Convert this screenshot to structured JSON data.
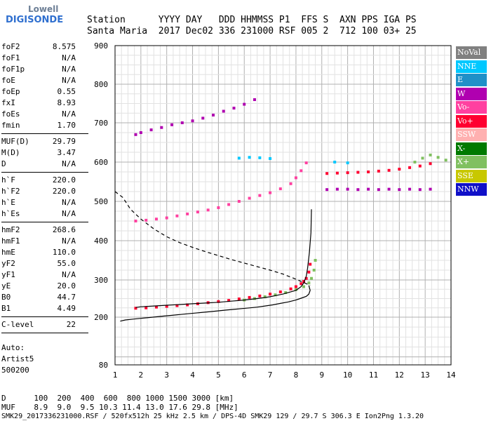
{
  "logo": {
    "line1": "Lowell",
    "line2": "DIGISONDE"
  },
  "header": {
    "row1": "Station      YYYY DAY   DDD HHMMSS P1  FFS S  AXN PPS IGA PS",
    "row2": "Santa Maria  2017 Dec02 336 231000 RSF 005 2  712 100 03+ 25"
  },
  "params": {
    "group1": [
      [
        "foF2",
        "8.575"
      ],
      [
        "foF1",
        "N/A"
      ],
      [
        "foF1p",
        "N/A"
      ],
      [
        "foE",
        "N/A"
      ],
      [
        "foEp",
        "0.55"
      ],
      [
        "fxI",
        "8.93"
      ],
      [
        "foEs",
        "N/A"
      ],
      [
        "fmin",
        "1.70"
      ]
    ],
    "group2": [
      [
        "MUF(D)",
        "29.79"
      ],
      [
        "M(D)",
        "3.47"
      ],
      [
        "D",
        "N/A"
      ]
    ],
    "group3": [
      [
        "h`F",
        "220.0"
      ],
      [
        "h`F2",
        "220.0"
      ],
      [
        "h`E",
        "N/A"
      ],
      [
        "h`Es",
        "N/A"
      ]
    ],
    "group4": [
      [
        "hmF2",
        "268.6"
      ],
      [
        "hmF1",
        "N/A"
      ],
      [
        "hmE",
        "110.0"
      ],
      [
        "yF2",
        "55.0"
      ],
      [
        "yF1",
        "N/A"
      ],
      [
        "yE",
        "20.0"
      ],
      [
        "B0",
        "44.7"
      ],
      [
        "B1",
        "4.49"
      ]
    ],
    "group5": [
      [
        "C-level",
        "22"
      ]
    ],
    "auto": [
      "Auto:",
      "Artist5",
      "500200"
    ]
  },
  "legend": [
    {
      "label": "NoVal",
      "color": "#808080"
    },
    {
      "label": "NNE",
      "color": "#00c8ff"
    },
    {
      "label": "E",
      "color": "#1f90c8"
    },
    {
      "label": "W",
      "color": "#b000b0"
    },
    {
      "label": "Vo-",
      "color": "#ff40a0"
    },
    {
      "label": "Vo+",
      "color": "#ff0030"
    },
    {
      "label": "SSW",
      "color": "#ffb0b0"
    },
    {
      "label": "X-",
      "color": "#007a00"
    },
    {
      "label": "X+",
      "color": "#80c060"
    },
    {
      "label": "SSE",
      "color": "#c8c800"
    },
    {
      "label": "NNW",
      "color": "#1010c8"
    }
  ],
  "footer": {
    "row1": "D      100  200  400  600  800 1000 1500 3000 [km]",
    "row2": "MUF    8.9  9.0  9.5 10.3 11.4 13.0 17.6 29.8 [MHz]",
    "row3": "SMK29_2017336231000.RSF / 520fx512h 25 kHz 2.5 km / DPS-4D SMK29 129 / 29.7 S 306.3 E Ion2Png 1.3.20"
  },
  "chart_data": {
    "type": "scatter",
    "xlim": [
      1,
      14
    ],
    "ylim": [
      80,
      900
    ],
    "xticks": [
      "1",
      "2",
      "3",
      "4",
      "5",
      "6",
      "7",
      "8",
      "9",
      "10",
      "11",
      "12",
      "13",
      "14"
    ],
    "yticks": [
      "80",
      "200",
      "300",
      "400",
      "500",
      "600",
      "700",
      "800",
      "900"
    ],
    "grid": true,
    "series": [
      {
        "color": "#ff40a0",
        "mode": "points",
        "x": [
          1.8,
          2.2,
          2.6,
          3.0,
          3.4,
          3.8,
          4.2,
          4.6,
          5.0,
          5.4,
          5.8,
          6.2,
          6.6,
          7.0,
          7.4,
          7.8,
          8.0,
          8.2,
          8.4
        ],
        "y": [
          450,
          452,
          455,
          458,
          463,
          468,
          473,
          478,
          484,
          492,
          500,
          508,
          515,
          522,
          532,
          545,
          560,
          578,
          598
        ]
      },
      {
        "color": "#b000b0",
        "mode": "points",
        "x": [
          1.8,
          2.0,
          2.4,
          2.8,
          3.2,
          3.6,
          4.0,
          4.4,
          4.8,
          5.2,
          5.6,
          6.0,
          6.4
        ],
        "y": [
          670,
          675,
          682,
          688,
          695,
          700,
          705,
          712,
          720,
          730,
          738,
          748,
          760
        ]
      },
      {
        "color": "#ff0030",
        "mode": "points",
        "x": [
          1.8,
          2.2,
          2.6,
          3.0,
          3.4,
          3.8,
          4.2,
          4.6,
          5.0,
          5.4,
          5.8,
          6.2,
          6.6,
          7.0,
          7.4,
          7.8,
          8.0,
          8.2,
          8.3,
          8.4,
          8.5,
          8.55
        ],
        "y": [
          224,
          225,
          227,
          229,
          231,
          233,
          236,
          239,
          242,
          245,
          249,
          253,
          257,
          262,
          268,
          276,
          282,
          290,
          296,
          304,
          320,
          340
        ]
      },
      {
        "color": "#80c060",
        "mode": "points",
        "x": [
          6.0,
          6.4,
          6.8,
          7.2,
          7.6,
          8.0,
          8.3,
          8.5,
          8.6,
          8.7,
          8.75
        ],
        "y": [
          246,
          250,
          255,
          260,
          266,
          274,
          282,
          292,
          304,
          325,
          350
        ]
      },
      {
        "color": "#b000b0",
        "mode": "points",
        "x": [
          9.2,
          9.6,
          10.0,
          10.4,
          10.8,
          11.2,
          11.6,
          12.0,
          12.4,
          12.8,
          13.2
        ],
        "y": [
          530,
          531,
          531,
          530,
          531,
          530,
          531,
          530,
          531,
          530,
          531
        ]
      },
      {
        "color": "#ff0030",
        "mode": "points",
        "x": [
          9.2,
          9.6,
          10.0,
          10.4,
          10.8,
          11.2,
          11.6,
          12.0,
          12.4,
          12.8,
          13.2
        ],
        "y": [
          571,
          572,
          573,
          574,
          575,
          577,
          579,
          582,
          586,
          590,
          596
        ]
      },
      {
        "color": "#80c060",
        "mode": "points",
        "x": [
          12.6,
          12.9,
          13.2,
          13.5,
          13.8
        ],
        "y": [
          600,
          610,
          618,
          612,
          605
        ]
      },
      {
        "color": "#00c8ff",
        "mode": "points",
        "x": [
          5.8,
          6.2,
          6.6,
          7.0,
          9.5,
          10.0
        ],
        "y": [
          610,
          612,
          611,
          609,
          600,
          598
        ]
      },
      {
        "color": "#000000",
        "mode": "solid",
        "x": [
          8.6,
          8.58,
          8.52,
          8.45,
          8.4,
          8.3,
          8.2,
          8.0,
          7.5,
          7.0,
          6.5,
          6.0,
          5.5,
          5.0,
          4.5,
          4.0,
          3.5,
          3.0,
          2.5,
          2.0,
          1.8
        ],
        "y": [
          480,
          420,
          370,
          330,
          310,
          292,
          282,
          272,
          262,
          255,
          250,
          246,
          243,
          240,
          238,
          236,
          234,
          232,
          230,
          228,
          226
        ]
      },
      {
        "color": "#000000",
        "mode": "solid",
        "x": [
          8.5,
          8.55,
          8.5,
          8.4,
          8.2,
          8.0,
          7.7,
          7.4,
          7.1,
          6.8,
          6.5,
          6.2,
          5.9,
          5.6,
          5.3,
          5.0,
          4.7,
          4.4,
          4.1,
          3.8,
          3.5,
          3.2,
          2.9,
          2.6,
          2.3,
          2.0,
          1.7,
          1.4,
          1.2
        ],
        "y": [
          285,
          272,
          262,
          256,
          251,
          246,
          241,
          237,
          233,
          230,
          227,
          225,
          223,
          221,
          219,
          217,
          215,
          213,
          211,
          209,
          207,
          205,
          203,
          201,
          199,
          197,
          195,
          193,
          190
        ]
      },
      {
        "color": "#000000",
        "mode": "dashed",
        "x": [
          1.0,
          1.3,
          1.6,
          2.0,
          2.5,
          3.0,
          3.5,
          4.0,
          4.5,
          5.0,
          5.5,
          6.0,
          6.5,
          7.0,
          7.5,
          8.0,
          8.4,
          8.55
        ],
        "y": [
          525,
          510,
          480,
          455,
          430,
          410,
          395,
          383,
          372,
          362,
          352,
          343,
          334,
          325,
          315,
          302,
          290,
          285
        ]
      }
    ]
  }
}
